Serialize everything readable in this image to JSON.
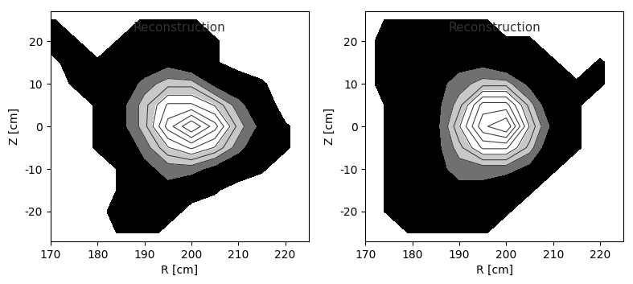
{
  "chart_data": [
    {
      "type": "contour",
      "title": "Reconstruction",
      "x_label": "R [cm]",
      "y_label": "Z [cm]",
      "x": [
        170,
        175,
        180,
        185,
        190,
        195,
        200,
        205,
        210,
        215,
        220,
        225
      ],
      "y": [
        -25,
        -20,
        -15,
        -10,
        -5,
        0,
        5,
        10,
        15,
        20,
        25
      ],
      "cells": [
        [
          0,
          0,
          0,
          1,
          2,
          0,
          0,
          0,
          0,
          0,
          0,
          0
        ],
        [
          0,
          0,
          0,
          2,
          3,
          2,
          0,
          0,
          0,
          0,
          0,
          0
        ],
        [
          0,
          0,
          0,
          1,
          2,
          3,
          2,
          1,
          0,
          0,
          0,
          0
        ],
        [
          0,
          0,
          0,
          1,
          3,
          4,
          4,
          3,
          2,
          1,
          0,
          0
        ],
        [
          0,
          0,
          1,
          2,
          4,
          6,
          7,
          6,
          4,
          2,
          1,
          0
        ],
        [
          0,
          0,
          1,
          3,
          5,
          8,
          10,
          8,
          5,
          3,
          1,
          0
        ],
        [
          0,
          0,
          1,
          3,
          5,
          7,
          7,
          6,
          4,
          2,
          0,
          0
        ],
        [
          0,
          1,
          2,
          2,
          4,
          5,
          5,
          3,
          2,
          1,
          0,
          0
        ],
        [
          0,
          2,
          1,
          1,
          2,
          3,
          2,
          1,
          0,
          0,
          0,
          0
        ],
        [
          2,
          1,
          0,
          1,
          2,
          3,
          2,
          1,
          0,
          0,
          0,
          0
        ],
        [
          1,
          0,
          0,
          0,
          1,
          2,
          1,
          0,
          0,
          0,
          0,
          0
        ]
      ],
      "xlim": [
        170,
        225
      ],
      "ylim": [
        -27,
        27
      ],
      "xticks": [
        170,
        180,
        190,
        200,
        210,
        220
      ],
      "yticks": [
        -20,
        -10,
        0,
        10,
        20
      ]
    },
    {
      "type": "contour",
      "title": "Reconstruction",
      "x_label": "R [cm]",
      "y_label": "Z [cm]",
      "x": [
        170,
        175,
        180,
        185,
        190,
        195,
        200,
        205,
        210,
        215,
        220,
        225
      ],
      "y": [
        -25,
        -20,
        -15,
        -10,
        -5,
        0,
        5,
        10,
        15,
        20,
        25
      ],
      "cells": [
        [
          0,
          0,
          1,
          2,
          2,
          1,
          0,
          0,
          0,
          0,
          0,
          0
        ],
        [
          0,
          1,
          2,
          2,
          2,
          2,
          1,
          0,
          0,
          0,
          0,
          0
        ],
        [
          0,
          1,
          2,
          2,
          3,
          3,
          2,
          1,
          0,
          0,
          0,
          0
        ],
        [
          0,
          1,
          2,
          3,
          4,
          4,
          4,
          3,
          1,
          0,
          0,
          0
        ],
        [
          0,
          1,
          2,
          3,
          5,
          7,
          7,
          5,
          2,
          1,
          0,
          0
        ],
        [
          0,
          1,
          2,
          3,
          6,
          9,
          10,
          6,
          3,
          1,
          0,
          0
        ],
        [
          0,
          1,
          2,
          3,
          5,
          8,
          8,
          5,
          2,
          1,
          0,
          0
        ],
        [
          0,
          2,
          2,
          3,
          4,
          5,
          5,
          3,
          2,
          1,
          1,
          0
        ],
        [
          0,
          2,
          2,
          2,
          3,
          3,
          2,
          2,
          1,
          0,
          1,
          0
        ],
        [
          0,
          2,
          2,
          2,
          2,
          2,
          1,
          1,
          0,
          0,
          0,
          0
        ],
        [
          0,
          1,
          2,
          2,
          1,
          1,
          0,
          0,
          0,
          0,
          0,
          0
        ]
      ],
      "xlim": [
        170,
        225
      ],
      "ylim": [
        -27,
        27
      ],
      "xticks": [
        170,
        180,
        190,
        200,
        210,
        220
      ],
      "yticks": [
        -20,
        -10,
        0,
        10,
        20
      ]
    }
  ]
}
